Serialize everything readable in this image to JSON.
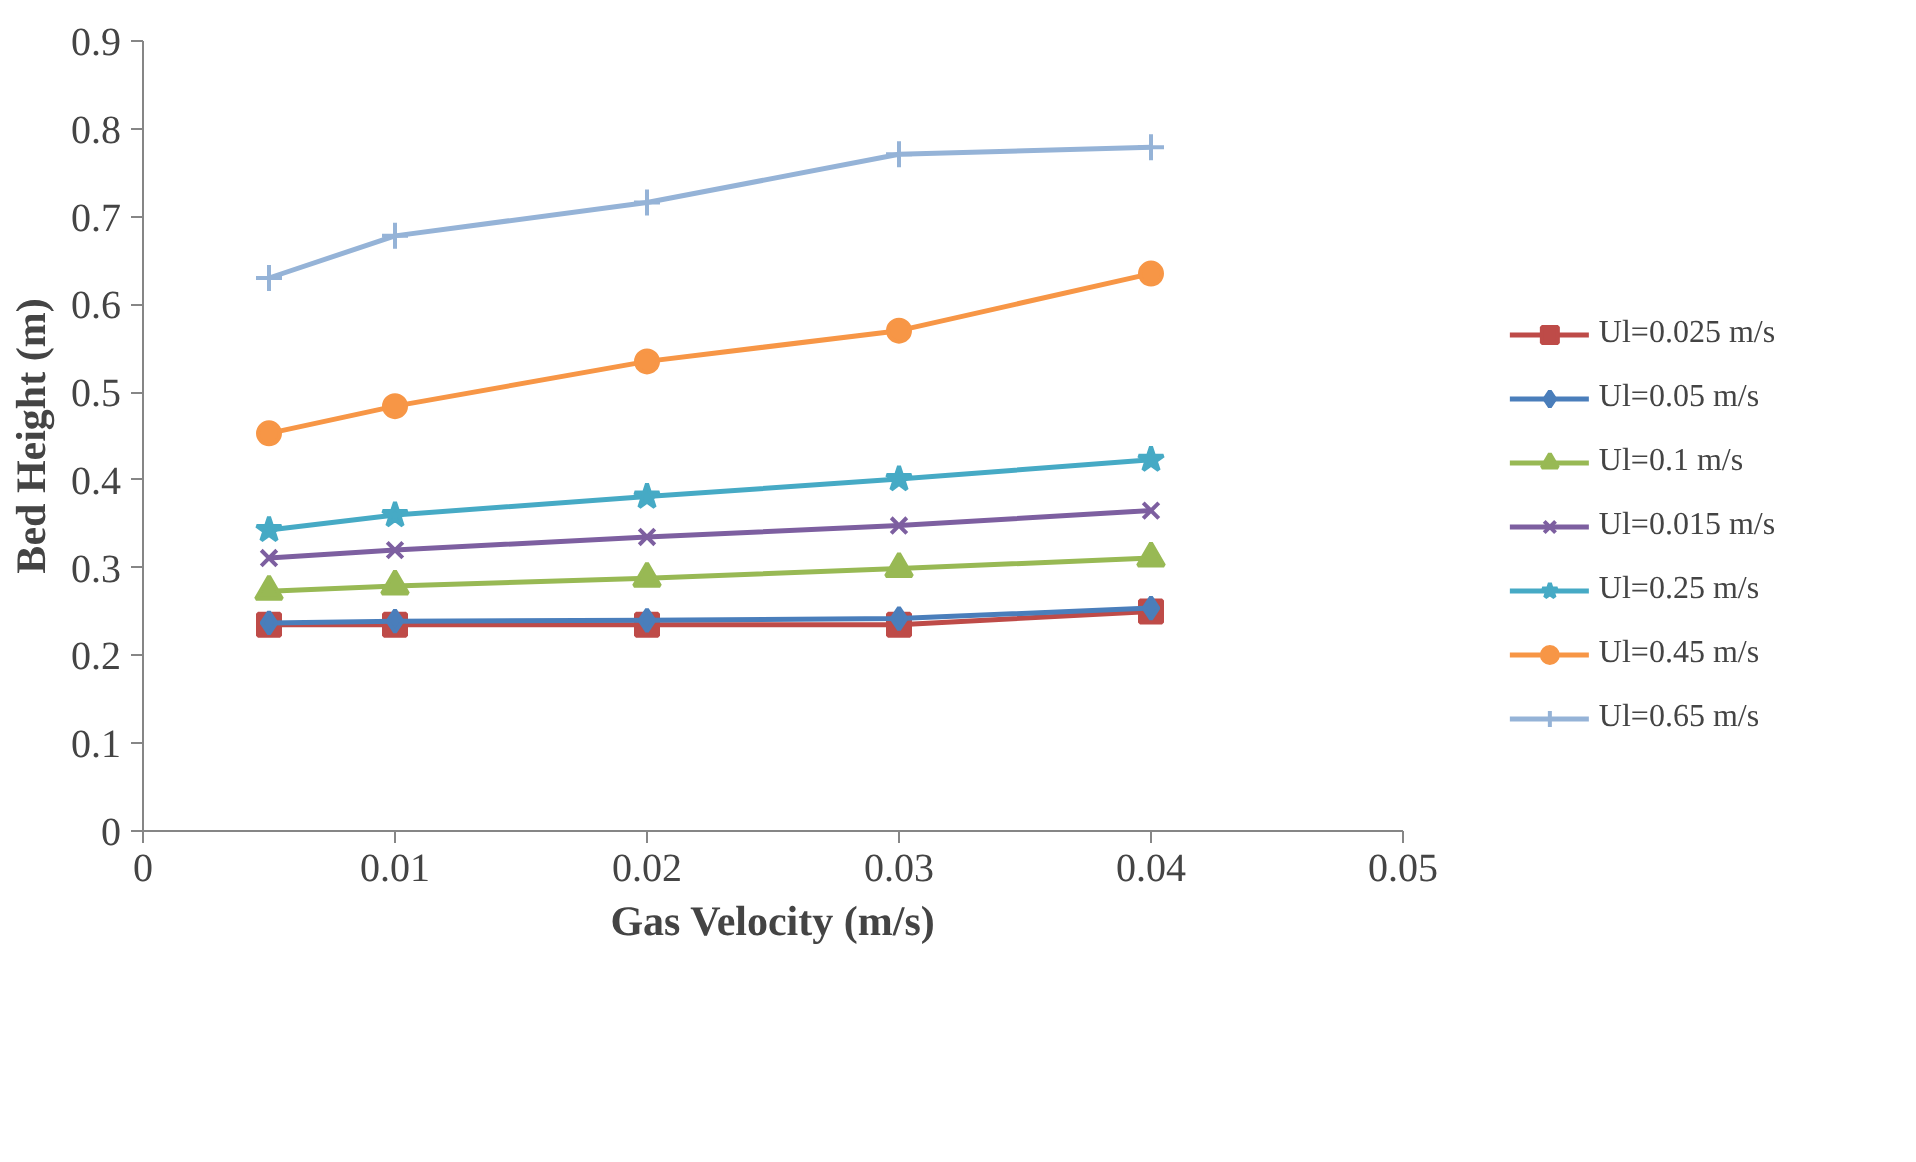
{
  "chart_data": {
    "type": "line",
    "xlabel": "Gas Velocity (m/s)",
    "ylabel": "Bed Height (m)",
    "x": [
      0.005,
      0.01,
      0.02,
      0.03,
      0.04
    ],
    "xlim": [
      0,
      0.05
    ],
    "xticks": [
      {
        "value": 0,
        "label": "0"
      },
      0.01,
      0.02,
      0.03,
      0.04,
      0.05
    ],
    "ylim": [
      0,
      0.9
    ],
    "yticks": [
      {
        "value": 0,
        "label": "0"
      },
      0.1,
      0.2,
      0.3,
      0.4,
      0.5,
      0.6,
      0.7,
      0.8,
      0.9
    ],
    "grid": false,
    "legend": "right",
    "series": [
      {
        "name": "Ul=0.025 m/s",
        "color": "#be4b48",
        "marker": "square",
        "values": [
          0.235,
          0.235,
          0.235,
          0.235,
          0.25
        ]
      },
      {
        "name": "Ul=0.05 m/s",
        "color": "#4a7ebb",
        "marker": "diamond",
        "values": [
          0.237,
          0.239,
          0.24,
          0.242,
          0.254
        ]
      },
      {
        "name": "Ul=0.1 m/s",
        "color": "#98b954",
        "marker": "triangle",
        "values": [
          0.273,
          0.279,
          0.288,
          0.299,
          0.311
        ]
      },
      {
        "name": "Ul=0.015 m/s",
        "color": "#7d5fa0",
        "marker": "x",
        "values": [
          0.311,
          0.32,
          0.335,
          0.348,
          0.365
        ]
      },
      {
        "name": "Ul=0.25 m/s",
        "color": "#46aac5",
        "marker": "star",
        "values": [
          0.343,
          0.36,
          0.381,
          0.401,
          0.423
        ]
      },
      {
        "name": "Ul=0.45 m/s",
        "color": "#f79646",
        "marker": "circle",
        "values": [
          0.453,
          0.484,
          0.535,
          0.57,
          0.635
        ]
      },
      {
        "name": "Ul=0.65 m/s",
        "color": "#95b3d7",
        "marker": "cross",
        "values": [
          0.63,
          0.678,
          0.716,
          0.771,
          0.779
        ]
      }
    ]
  }
}
